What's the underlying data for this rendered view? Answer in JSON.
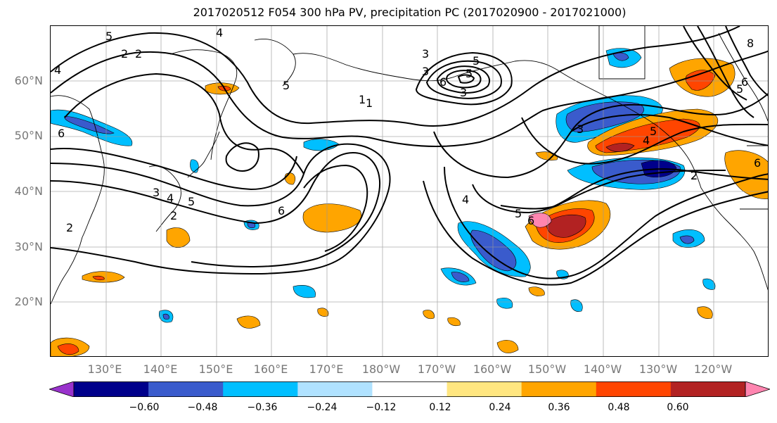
{
  "title": "2017020512 F054 300 hPa PV, precipitation PC (2017020900 - 2017021000)",
  "lat_labels": [
    "60°N",
    "50°N",
    "40°N",
    "30°N",
    "20°N"
  ],
  "lon_labels": [
    "130°E",
    "140°E",
    "150°E",
    "160°E",
    "170°E",
    "180°W",
    "170°W",
    "160°W",
    "150°W",
    "140°W",
    "130°W",
    "120°W"
  ],
  "colorbar": {
    "tick_labels": [
      "−0.60",
      "−0.48",
      "−0.36",
      "−0.24",
      "−0.12",
      "0.12",
      "0.24",
      "0.36",
      "0.48",
      "0.60"
    ],
    "colors": [
      "#9932cc",
      "#00008b",
      "#3a5bcc",
      "#00bfff",
      "#b0e2ff",
      "#ffffff",
      "#ffe680",
      "#ffa500",
      "#ff4500",
      "#b22222",
      "#ff85b0"
    ]
  },
  "contour_labels": [
    "5",
    "2",
    "4",
    "6",
    "2",
    "3",
    "4",
    "5",
    "1",
    "3",
    "5",
    "6",
    "5",
    "3",
    "1",
    "6",
    "4",
    "3",
    "2",
    "5",
    "4",
    "5",
    "6",
    "3",
    "2",
    "4",
    "5",
    "8",
    "5",
    "6",
    "2",
    "6",
    "2"
  ]
}
